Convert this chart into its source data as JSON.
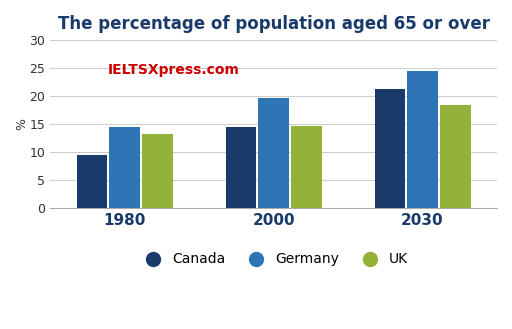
{
  "title": "The percentage of population aged 65 or over",
  "years": [
    "1980",
    "2000",
    "2030"
  ],
  "countries": [
    "Canada",
    "Germany",
    "UK"
  ],
  "values": {
    "Canada": [
      9.5,
      14.5,
      21.2
    ],
    "Germany": [
      14.5,
      19.7,
      24.5
    ],
    "UK": [
      13.2,
      14.6,
      18.3
    ]
  },
  "colors": {
    "Canada": "#1a3a6b",
    "Germany": "#2e75b6",
    "UK": "#92b23a"
  },
  "ylim": [
    0,
    30
  ],
  "yticks": [
    0,
    5,
    10,
    15,
    20,
    25,
    30
  ],
  "ylabel": "%",
  "watermark": "IELTSXpress.com",
  "watermark_color": "#cc0000",
  "background_color": "#ffffff",
  "bar_width": 0.22,
  "title_fontsize": 12,
  "title_color": "#1a3a6b",
  "tick_fontsize": 9,
  "legend_fontsize": 10,
  "xtick_fontsize": 11
}
